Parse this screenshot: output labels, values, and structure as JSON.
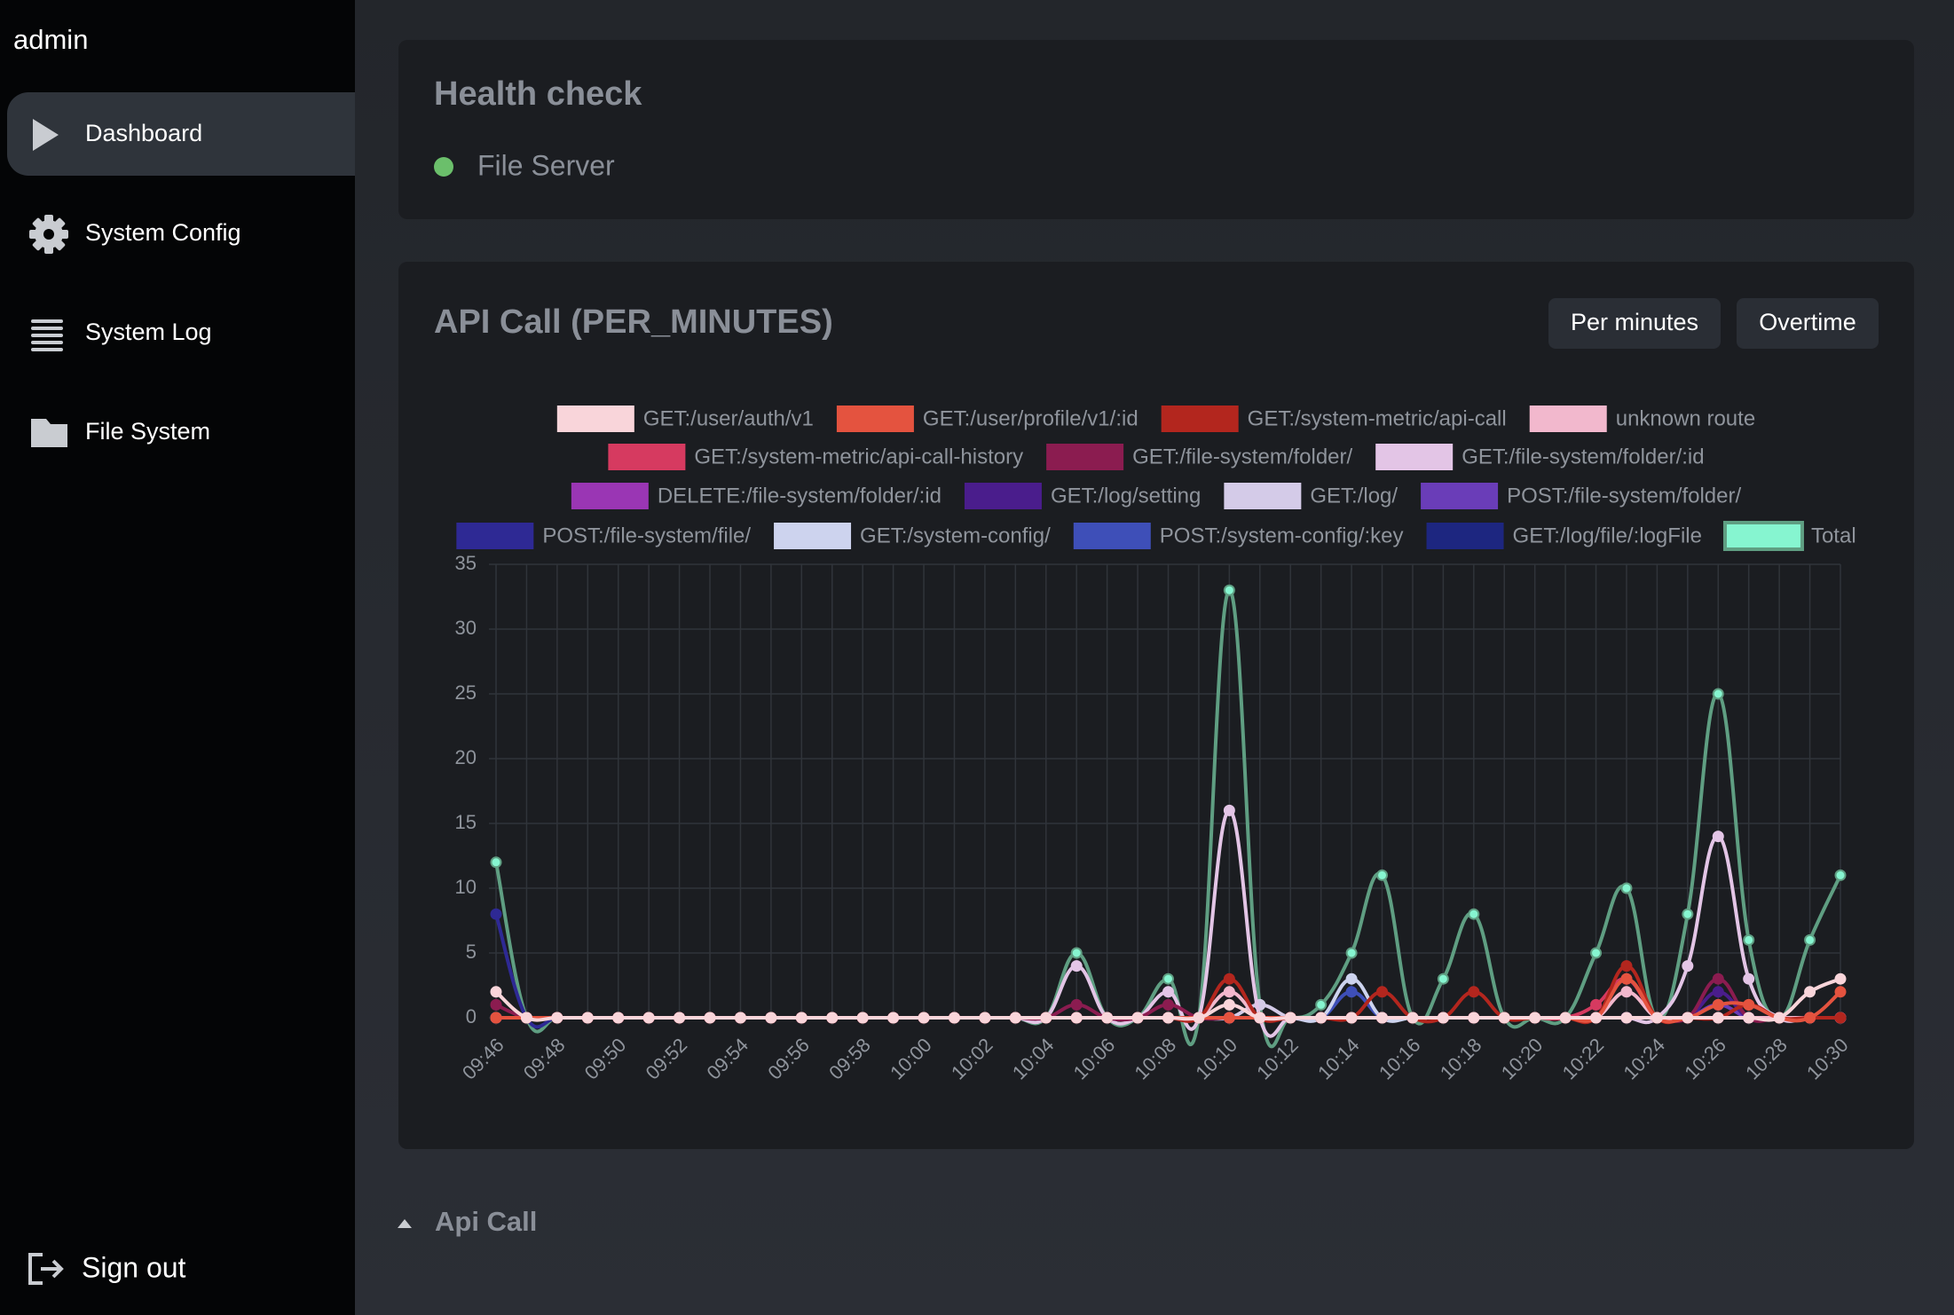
{
  "sidebar": {
    "user": "admin",
    "items": [
      "Dashboard",
      "System Config",
      "System Log",
      "File System"
    ],
    "sign_out": "Sign out"
  },
  "health": {
    "title": "Health check",
    "services": [
      "File Server"
    ]
  },
  "api_call": {
    "title": "API Call (PER_MINUTES)",
    "buttons": [
      "Per minutes",
      "Overtime"
    ],
    "section": "Api Call"
  },
  "chart_data": {
    "type": "line",
    "categories": [
      "09:46",
      null,
      "09:48",
      null,
      "09:50",
      null,
      "09:52",
      null,
      "09:54",
      null,
      "09:56",
      null,
      "09:58",
      null,
      "10:00",
      null,
      "10:02",
      null,
      "10:04",
      null,
      "10:06",
      null,
      "10:08",
      null,
      "10:10",
      null,
      "10:12",
      null,
      "10:14",
      null,
      "10:16",
      null,
      "10:18",
      null,
      "10:20",
      null,
      "10:22",
      null,
      "10:24",
      null,
      "10:26",
      null,
      "10:28",
      null,
      "10:30"
    ],
    "ylim": [
      0,
      35
    ],
    "yticks": [
      0,
      5,
      10,
      15,
      20,
      25,
      30,
      35
    ],
    "grid": true,
    "series": [
      {
        "name": "GET:/user/auth/v1",
        "color": "#f9d5da",
        "values": [
          2,
          0,
          0,
          0,
          0,
          0,
          0,
          0,
          0,
          0,
          0,
          0,
          0,
          0,
          0,
          0,
          0,
          0,
          0,
          0,
          0,
          0,
          0,
          0,
          1,
          0,
          0,
          0,
          0,
          0,
          0,
          0,
          0,
          0,
          0,
          0,
          0,
          0,
          0,
          0,
          0,
          0,
          0,
          2,
          3
        ]
      },
      {
        "name": "GET:/user/profile/v1/:id",
        "color": "#e4533f",
        "values": [
          0,
          0,
          0,
          0,
          0,
          0,
          0,
          0,
          0,
          0,
          0,
          0,
          0,
          0,
          0,
          0,
          0,
          0,
          0,
          0,
          0,
          0,
          0,
          0,
          0,
          0,
          0,
          0,
          0,
          0,
          0,
          0,
          0,
          0,
          0,
          0,
          0,
          3,
          0,
          0,
          1,
          1,
          0,
          0,
          2
        ]
      },
      {
        "name": "GET:/system-metric/api-call",
        "color": "#b3261e",
        "values": [
          0,
          0,
          0,
          0,
          0,
          0,
          0,
          0,
          0,
          0,
          0,
          0,
          0,
          0,
          0,
          0,
          0,
          0,
          0,
          0,
          0,
          0,
          0,
          0,
          3,
          0,
          0,
          0,
          0,
          2,
          0,
          0,
          2,
          0,
          0,
          0,
          0,
          4,
          0,
          0,
          0,
          1,
          0,
          0,
          0
        ]
      },
      {
        "name": "unknown route",
        "color": "#f2b8cd",
        "values": [
          0,
          0,
          0,
          0,
          0,
          0,
          0,
          0,
          0,
          0,
          0,
          0,
          0,
          0,
          0,
          0,
          0,
          0,
          0,
          0,
          0,
          0,
          0,
          0,
          2,
          0,
          0,
          0,
          0,
          0,
          0,
          0,
          0,
          0,
          0,
          0,
          0,
          2,
          0,
          0,
          0,
          0,
          0,
          0,
          0
        ]
      },
      {
        "name": "GET:/system-metric/api-call-history",
        "color": "#d63a60",
        "values": [
          0,
          0,
          0,
          0,
          0,
          0,
          0,
          0,
          0,
          0,
          0,
          0,
          0,
          0,
          0,
          0,
          0,
          0,
          0,
          0,
          0,
          0,
          0,
          0,
          0,
          0,
          0,
          0,
          0,
          0,
          0,
          0,
          0,
          0,
          0,
          0,
          1,
          3,
          0,
          0,
          0,
          0,
          0,
          0,
          0
        ]
      },
      {
        "name": "GET:/file-system/folder/",
        "color": "#8b1c50",
        "values": [
          1,
          0,
          0,
          0,
          0,
          0,
          0,
          0,
          0,
          0,
          0,
          0,
          0,
          0,
          0,
          0,
          0,
          0,
          0,
          1,
          0,
          0,
          1,
          0,
          0,
          0,
          0,
          0,
          0,
          0,
          0,
          0,
          0,
          0,
          0,
          0,
          0,
          0,
          0,
          0,
          3,
          0,
          0,
          0,
          0
        ]
      },
      {
        "name": "GET:/file-system/folder/:id",
        "color": "#e3c5e6",
        "values": [
          0,
          0,
          0,
          0,
          0,
          0,
          0,
          0,
          0,
          0,
          0,
          0,
          0,
          0,
          0,
          0,
          0,
          0,
          0,
          4,
          0,
          0,
          2,
          0,
          16,
          0,
          0,
          0,
          0,
          0,
          0,
          0,
          0,
          0,
          0,
          0,
          0,
          0,
          0,
          4,
          14,
          3,
          0,
          0,
          0
        ]
      },
      {
        "name": "DELETE:/file-system/folder/:id",
        "color": "#9a36b4",
        "values": [
          0,
          0,
          0,
          0,
          0,
          0,
          0,
          0,
          0,
          0,
          0,
          0,
          0,
          0,
          0,
          0,
          0,
          0,
          0,
          0,
          0,
          0,
          0,
          0,
          0,
          0,
          0,
          0,
          0,
          0,
          0,
          0,
          0,
          0,
          0,
          0,
          0,
          0,
          0,
          0,
          0,
          0,
          0,
          0,
          0
        ]
      },
      {
        "name": "GET:/log/setting",
        "color": "#4a1d8c",
        "values": [
          0,
          0,
          0,
          0,
          0,
          0,
          0,
          0,
          0,
          0,
          0,
          0,
          0,
          0,
          0,
          0,
          0,
          0,
          0,
          0,
          0,
          0,
          0,
          0,
          0,
          0,
          0,
          0,
          0,
          0,
          0,
          0,
          0,
          0,
          0,
          0,
          0,
          0,
          0,
          0,
          2,
          0,
          0,
          0,
          0
        ]
      },
      {
        "name": "GET:/log/",
        "color": "#d4cbe8",
        "values": [
          0,
          0,
          0,
          0,
          0,
          0,
          0,
          0,
          0,
          0,
          0,
          0,
          0,
          0,
          0,
          0,
          0,
          0,
          0,
          0,
          0,
          0,
          0,
          0,
          0,
          1,
          0,
          0,
          0,
          0,
          0,
          0,
          0,
          0,
          0,
          0,
          0,
          0,
          0,
          0,
          0,
          0,
          0,
          0,
          0
        ]
      },
      {
        "name": "POST:/file-system/folder/",
        "color": "#6a3db8",
        "values": [
          0,
          0,
          0,
          0,
          0,
          0,
          0,
          0,
          0,
          0,
          0,
          0,
          0,
          0,
          0,
          0,
          0,
          0,
          0,
          0,
          0,
          0,
          0,
          0,
          0,
          0,
          0,
          0,
          0,
          0,
          0,
          0,
          0,
          0,
          0,
          0,
          0,
          0,
          0,
          0,
          1,
          0,
          0,
          0,
          0
        ]
      },
      {
        "name": "POST:/file-system/file/",
        "color": "#2e2994",
        "values": [
          8,
          0,
          0,
          0,
          0,
          0,
          0,
          0,
          0,
          0,
          0,
          0,
          0,
          0,
          0,
          0,
          0,
          0,
          0,
          0,
          0,
          0,
          0,
          0,
          0,
          0,
          0,
          0,
          0,
          0,
          0,
          0,
          0,
          0,
          0,
          0,
          0,
          0,
          0,
          0,
          0,
          0,
          0,
          0,
          0
        ]
      },
      {
        "name": "GET:/system-config/",
        "color": "#cdd3ee",
        "values": [
          0,
          0,
          0,
          0,
          0,
          0,
          0,
          0,
          0,
          0,
          0,
          0,
          0,
          0,
          0,
          0,
          0,
          0,
          0,
          0,
          0,
          0,
          0,
          0,
          0,
          0,
          0,
          0,
          3,
          0,
          0,
          0,
          0,
          0,
          0,
          0,
          0,
          0,
          0,
          0,
          0,
          0,
          0,
          0,
          0
        ]
      },
      {
        "name": "POST:/system-config/:key",
        "color": "#3e4fb8",
        "values": [
          0,
          0,
          0,
          0,
          0,
          0,
          0,
          0,
          0,
          0,
          0,
          0,
          0,
          0,
          0,
          0,
          0,
          0,
          0,
          0,
          0,
          0,
          0,
          0,
          0,
          0,
          0,
          0,
          2,
          0,
          0,
          0,
          0,
          0,
          0,
          0,
          0,
          0,
          0,
          0,
          0,
          0,
          0,
          0,
          0
        ]
      },
      {
        "name": "GET:/log/file/:logFile",
        "color": "#1d2680",
        "values": [
          0,
          0,
          0,
          0,
          0,
          0,
          0,
          0,
          0,
          0,
          0,
          0,
          0,
          0,
          0,
          0,
          0,
          0,
          0,
          0,
          0,
          0,
          0,
          0,
          0,
          0,
          0,
          0,
          0,
          0,
          0,
          0,
          0,
          0,
          0,
          0,
          0,
          0,
          0,
          0,
          1,
          0,
          0,
          0,
          0
        ]
      },
      {
        "name": "Total",
        "color": "#5f9e82",
        "values": [
          12,
          0,
          0,
          0,
          0,
          0,
          0,
          0,
          0,
          0,
          0,
          0,
          0,
          0,
          0,
          0,
          0,
          0,
          0,
          5,
          0,
          0,
          3,
          0,
          33,
          1,
          0,
          1,
          5,
          11,
          0,
          3,
          8,
          0,
          0,
          0,
          5,
          10,
          0,
          8,
          25,
          6,
          0,
          6,
          11
        ]
      }
    ]
  }
}
